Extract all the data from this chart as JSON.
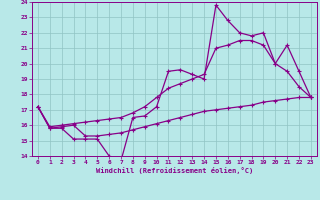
{
  "xlabel": "Windchill (Refroidissement éolien,°C)",
  "background_color": "#b8e8e8",
  "line_color": "#880088",
  "xlim_min": -0.5,
  "xlim_max": 23.5,
  "ylim_min": 14,
  "ylim_max": 24,
  "xticks": [
    0,
    1,
    2,
    3,
    4,
    5,
    6,
    7,
    8,
    9,
    10,
    11,
    12,
    13,
    14,
    15,
    16,
    17,
    18,
    19,
    20,
    21,
    22,
    23
  ],
  "yticks": [
    14,
    15,
    16,
    17,
    18,
    19,
    20,
    21,
    22,
    23,
    24
  ],
  "line1_x": [
    0,
    1,
    2,
    3,
    4,
    5,
    6,
    7,
    8,
    9,
    10,
    11,
    12,
    13,
    14,
    15,
    16,
    17,
    18,
    19,
    20,
    21,
    22,
    23
  ],
  "line1_y": [
    17.2,
    15.8,
    15.8,
    15.1,
    15.1,
    15.1,
    14.0,
    13.7,
    16.5,
    16.6,
    17.2,
    19.5,
    19.6,
    19.3,
    19.0,
    23.8,
    22.8,
    22.0,
    21.8,
    22.0,
    20.0,
    19.5,
    18.5,
    17.8
  ],
  "line2_x": [
    0,
    1,
    2,
    3,
    4,
    5,
    6,
    7,
    8,
    9,
    10,
    11,
    12,
    13,
    14,
    15,
    16,
    17,
    18,
    19,
    20,
    21,
    22,
    23
  ],
  "line2_y": [
    17.2,
    15.9,
    16.0,
    16.1,
    16.2,
    16.3,
    16.4,
    16.5,
    16.8,
    17.2,
    17.8,
    18.4,
    18.7,
    19.0,
    19.3,
    21.0,
    21.2,
    21.5,
    21.5,
    21.2,
    20.0,
    21.2,
    19.5,
    17.8
  ],
  "line3_x": [
    0,
    1,
    2,
    3,
    4,
    5,
    6,
    7,
    8,
    9,
    10,
    11,
    12,
    13,
    14,
    15,
    16,
    17,
    18,
    19,
    20,
    21,
    22,
    23
  ],
  "line3_y": [
    17.2,
    15.8,
    15.9,
    16.0,
    15.3,
    15.3,
    15.4,
    15.5,
    15.7,
    15.9,
    16.1,
    16.3,
    16.5,
    16.7,
    16.9,
    17.0,
    17.1,
    17.2,
    17.3,
    17.5,
    17.6,
    17.7,
    17.8,
    17.8
  ]
}
